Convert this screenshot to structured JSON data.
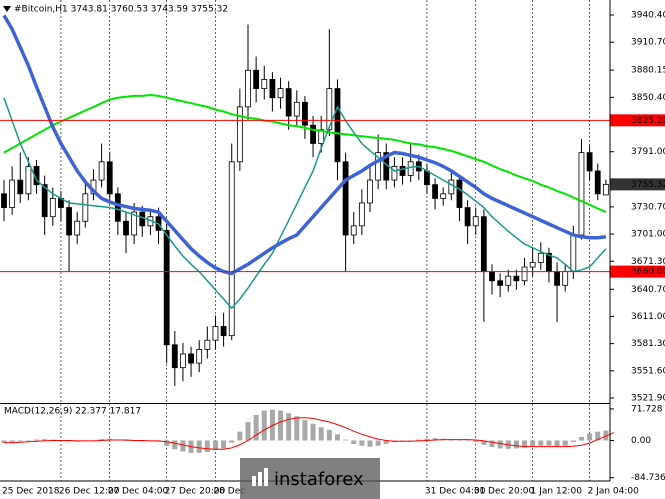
{
  "chart_data": [
    {
      "type": "candlestick",
      "title": "#Bitcoin,H1  3743.81 3760.53 3743.59 3755.32",
      "categories": [
        "25 Dec 2018",
        null,
        null,
        null,
        null,
        null,
        null,
        "26 Dec 12:00",
        null,
        null,
        null,
        null,
        null,
        "27 Dec 04:00",
        null,
        null,
        null,
        null,
        null,
        null,
        "27 Dec 20:00",
        null,
        null,
        null,
        null,
        null,
        "28 Dec",
        null,
        null,
        null,
        null,
        null,
        null,
        null,
        null,
        null,
        null,
        null,
        null,
        null,
        null,
        null,
        null,
        null,
        null,
        null,
        null,
        null,
        null,
        null,
        null,
        null,
        "31 Dec 04:00",
        null,
        null,
        null,
        null,
        null,
        "31 Dec 20:00",
        null,
        null,
        null,
        null,
        null,
        null,
        "1 Jan 12:00",
        null,
        null,
        null,
        null,
        null,
        null,
        "2 Jan 04:00",
        null,
        null
      ],
      "open": [
        3745,
        3730,
        3760,
        3745,
        3775,
        3755,
        3720,
        3740,
        3730,
        3700,
        3715,
        3745,
        3760,
        3780,
        3745,
        3715,
        3700,
        3725,
        3710,
        3720,
        3705,
        3580,
        3555,
        3570,
        3560,
        3575,
        3585,
        3600,
        3590,
        3780,
        3840,
        3880,
        3860,
        3870,
        3850,
        3860,
        3830,
        3845,
        3820,
        3800,
        3815,
        3860,
        3780,
        3700,
        3710,
        3735,
        3760,
        3790,
        3760,
        3775,
        3765,
        3780,
        3770,
        3755,
        3740,
        3745,
        3760,
        3730,
        3710,
        3720,
        3660,
        3650,
        3645,
        3655,
        3650,
        3665,
        3670,
        3680,
        3660,
        3645,
        3660,
        3700,
        3790,
        3770,
        3743.81
      ],
      "high": [
        3760,
        3775,
        3790,
        3785,
        3782,
        3765,
        3752,
        3748,
        3738,
        3725,
        3760,
        3772,
        3800,
        3790,
        3752,
        3725,
        3735,
        3732,
        3728,
        3730,
        3712,
        3595,
        3582,
        3578,
        3585,
        3600,
        3612,
        3615,
        3800,
        3860,
        3930,
        3895,
        3885,
        3878,
        3872,
        3868,
        3858,
        3852,
        3830,
        3830,
        3925,
        3870,
        3790,
        3725,
        3750,
        3775,
        3810,
        3800,
        3785,
        3785,
        3800,
        3788,
        3778,
        3762,
        3752,
        3770,
        3765,
        3738,
        3730,
        3728,
        3668,
        3658,
        3662,
        3662,
        3675,
        3685,
        3692,
        3686,
        3670,
        3668,
        3710,
        3805,
        3798,
        3778,
        3760.53
      ],
      "low": [
        3715,
        3722,
        3735,
        3738,
        3745,
        3700,
        3710,
        3715,
        3660,
        3690,
        3708,
        3738,
        3752,
        3735,
        3700,
        3680,
        3690,
        3698,
        3700,
        3690,
        3560,
        3535,
        3540,
        3545,
        3550,
        3565,
        3575,
        3578,
        3585,
        3770,
        3825,
        3845,
        3848,
        3835,
        3838,
        3815,
        3820,
        3805,
        3785,
        3790,
        3808,
        3760,
        3660,
        3690,
        3700,
        3725,
        3750,
        3750,
        3752,
        3755,
        3758,
        3760,
        3745,
        3728,
        3732,
        3738,
        3715,
        3690,
        3700,
        3605,
        3635,
        3632,
        3638,
        3640,
        3645,
        3655,
        3662,
        3648,
        3605,
        3638,
        3652,
        3695,
        3760,
        3738,
        3743.59
      ],
      "close": [
        3730,
        3760,
        3745,
        3775,
        3755,
        3720,
        3740,
        3730,
        3700,
        3715,
        3745,
        3760,
        3780,
        3745,
        3715,
        3700,
        3725,
        3710,
        3720,
        3705,
        3580,
        3555,
        3570,
        3560,
        3575,
        3585,
        3600,
        3590,
        3780,
        3840,
        3880,
        3860,
        3870,
        3850,
        3860,
        3830,
        3845,
        3820,
        3800,
        3815,
        3860,
        3780,
        3700,
        3710,
        3735,
        3760,
        3790,
        3760,
        3775,
        3765,
        3780,
        3770,
        3755,
        3740,
        3745,
        3760,
        3730,
        3710,
        3720,
        3660,
        3650,
        3645,
        3655,
        3650,
        3665,
        3670,
        3680,
        3660,
        3645,
        3660,
        3700,
        3790,
        3770,
        3745,
        3755.32
      ],
      "series": [
        {
          "color": "#00e600",
          "values": [
            3790,
            3795,
            3800,
            3805,
            3810,
            3815,
            3820,
            3824,
            3828,
            3832,
            3836,
            3840,
            3844,
            3848,
            3850,
            3851,
            3852,
            3852,
            3853,
            3852,
            3850,
            3848,
            3846,
            3844,
            3842,
            3840,
            3837,
            3835,
            3832,
            3830,
            3828,
            3827,
            3825,
            3824,
            3822,
            3820,
            3819,
            3817,
            3815,
            3814,
            3812,
            3811,
            3810,
            3809,
            3808,
            3807,
            3806,
            3805,
            3804,
            3802,
            3800,
            3799,
            3797,
            3796,
            3794,
            3792,
            3789,
            3786,
            3783,
            3780,
            3776,
            3772,
            3769,
            3765,
            3762,
            3759,
            3755,
            3752,
            3748,
            3745,
            3741,
            3737,
            3733,
            3729,
            3725
          ]
        },
        {
          "color": "#1a9c8c",
          "values": [
            3850,
            3825,
            3800,
            3780,
            3760,
            3752,
            3745,
            3740,
            3735,
            3734,
            3733,
            3732,
            3731,
            3730,
            3728,
            3725,
            3722,
            3719,
            3716,
            3712,
            3700,
            3688,
            3677,
            3668,
            3660,
            3650,
            3640,
            3630,
            3620,
            3630,
            3642,
            3655,
            3668,
            3680,
            3698,
            3716,
            3734,
            3752,
            3770,
            3795,
            3818,
            3840,
            3825,
            3812,
            3800,
            3792,
            3785,
            3777,
            3770,
            3772,
            3774,
            3775,
            3770,
            3765,
            3760,
            3755,
            3750,
            3744,
            3737,
            3730,
            3720,
            3712,
            3704,
            3697,
            3690,
            3686,
            3682,
            3678,
            3675,
            3668,
            3660,
            3662,
            3665,
            3675,
            3685
          ]
        },
        {
          "color": "#3d63d6",
          "values": [
            3940,
            3925,
            3905,
            3885,
            3862,
            3840,
            3818,
            3800,
            3785,
            3770,
            3758,
            3748,
            3740,
            3736,
            3733,
            3731,
            3729,
            3728,
            3727,
            3725,
            3715,
            3705,
            3695,
            3685,
            3677,
            3670,
            3664,
            3660,
            3658,
            3663,
            3668,
            3674,
            3680,
            3686,
            3691,
            3696,
            3700,
            3710,
            3720,
            3730,
            3740,
            3750,
            3760,
            3765,
            3770,
            3776,
            3781,
            3786,
            3790,
            3789,
            3787,
            3785,
            3782,
            3779,
            3775,
            3770,
            3764,
            3758,
            3752,
            3745,
            3740,
            3736,
            3732,
            3728,
            3724,
            3720,
            3716,
            3712,
            3708,
            3704,
            3700,
            3698,
            3697,
            3697,
            3698
          ]
        }
      ],
      "hlines": [
        {
          "value": 3825.29,
          "label": "3825.29",
          "color": "#ff0000"
        },
        {
          "value": 3660,
          "label": "3660.00",
          "color": "#ff0000"
        }
      ],
      "last_price": {
        "value": 3755.32,
        "label": "3755.32"
      },
      "ylim": [
        3516.4,
        3956.8
      ],
      "yticks": [
        {
          "value": 3940.4,
          "label": "3940.40"
        },
        {
          "value": 3910.7,
          "label": "3910.70"
        },
        {
          "value": 3880.15,
          "label": "3880.15"
        },
        {
          "value": 3850.4,
          "label": "3850.40"
        },
        {
          "value": 3791,
          "label": "3791.00"
        },
        {
          "value": 3730.7,
          "label": "3730.70"
        },
        {
          "value": 3701,
          "label": "3701.00"
        },
        {
          "value": 3671.3,
          "label": "3671.30"
        },
        {
          "value": 3640.7,
          "label": "3640.70"
        },
        {
          "value": 3611,
          "label": "3611.00"
        },
        {
          "value": 3581.3,
          "label": "3581.30"
        },
        {
          "value": 3551.6,
          "label": "3551.60"
        },
        {
          "value": 3521.9,
          "label": "3521.90"
        }
      ],
      "grid": true,
      "watermark": "instaforex"
    },
    {
      "type": "bar",
      "title": "MACD(12,26,9) 22.377 17.817",
      "values": [
        -6,
        -4,
        -2,
        0,
        2,
        3,
        2,
        0,
        -2,
        -3,
        -2,
        0,
        3,
        4,
        2,
        0,
        -1,
        -2,
        -2,
        -3,
        -12,
        -20,
        -25,
        -28,
        -28,
        -26,
        -22,
        -18,
        -5,
        20,
        42,
        58,
        68,
        70,
        68,
        62,
        55,
        46,
        38,
        30,
        24,
        14,
        2,
        -8,
        -12,
        -14,
        -12,
        -8,
        -4,
        -2,
        0,
        2,
        4,
        5,
        4,
        3,
        2,
        0,
        -3,
        -10,
        -15,
        -18,
        -19,
        -18,
        -16,
        -14,
        -12,
        -12,
        -14,
        -12,
        -4,
        8,
        16,
        20,
        22.377
      ],
      "color": "#a8a8a8",
      "lines": [
        {
          "color": "#ff0000",
          "values": [
            -5,
            -5,
            -4,
            -3,
            -2,
            -1,
            0,
            0,
            0,
            -1,
            -1,
            -1,
            0,
            1,
            1,
            1,
            0,
            0,
            -1,
            -1,
            -3,
            -6,
            -10,
            -14,
            -17,
            -19,
            -20,
            -20,
            -17,
            -10,
            0,
            12,
            24,
            34,
            42,
            48,
            51,
            52,
            50,
            46,
            42,
            36,
            29,
            21,
            14,
            8,
            3,
            0,
            -2,
            -2,
            -2,
            -1,
            0,
            1,
            2,
            2,
            2,
            2,
            1,
            -1,
            -4,
            -7,
            -10,
            -12,
            -14,
            -14,
            -14,
            -14,
            -14,
            -14,
            -13,
            -11,
            -6,
            2,
            10,
            17.817
          ]
        }
      ],
      "ylim": [
        -92.2,
        82.9
      ],
      "yticks": [
        71.728,
        {
          "value": 0,
          "label": "0.00"
        },
        -84.736
      ]
    }
  ]
}
